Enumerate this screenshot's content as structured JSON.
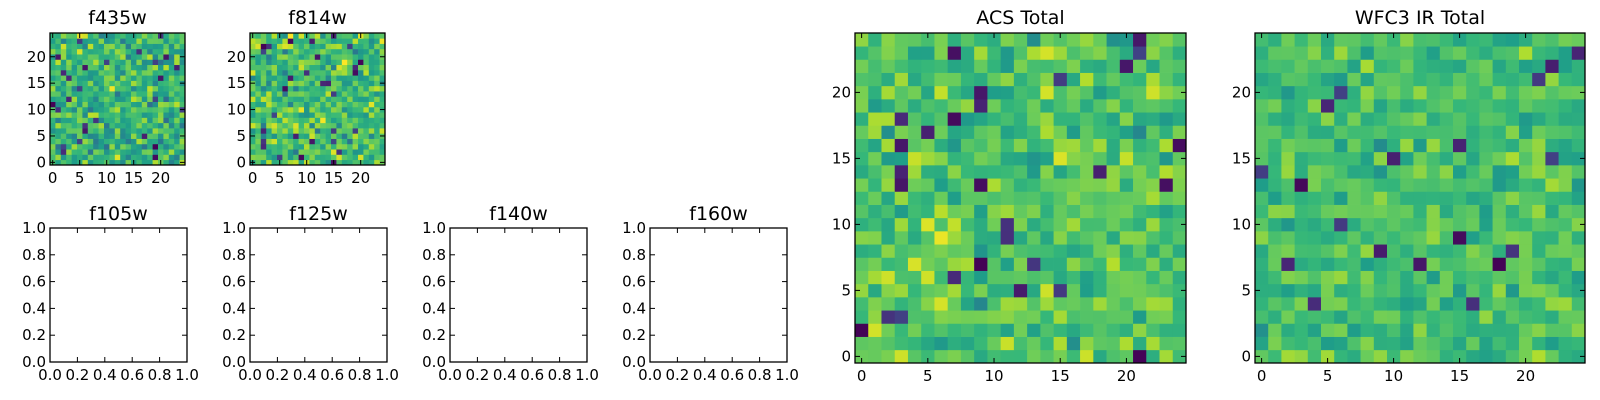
{
  "chart_data": [
    {
      "type": "heatmap",
      "title": "f435w",
      "grid_size": [
        25,
        25
      ],
      "xlim": [
        -0.5,
        24.5
      ],
      "ylim": [
        -0.5,
        24.5
      ],
      "xticks": [
        0,
        5,
        10,
        15,
        20
      ],
      "yticks": [
        0,
        5,
        10,
        15,
        20
      ],
      "xtick_labels": [
        "0",
        "5",
        "10",
        "15",
        "20"
      ],
      "ytick_labels": [
        "0",
        "5",
        "10",
        "15",
        "20"
      ],
      "colormap": "viridis",
      "seed": 11,
      "mean": 0.66,
      "spread": 0.17,
      "outliers": 0.05
    },
    {
      "type": "heatmap",
      "title": "f814w",
      "grid_size": [
        25,
        25
      ],
      "xlim": [
        -0.5,
        24.5
      ],
      "ylim": [
        -0.5,
        24.5
      ],
      "xticks": [
        0,
        5,
        10,
        15,
        20
      ],
      "yticks": [
        0,
        5,
        10,
        15,
        20
      ],
      "xtick_labels": [
        "0",
        "5",
        "10",
        "15",
        "20"
      ],
      "ytick_labels": [
        "0",
        "5",
        "10",
        "15",
        "20"
      ],
      "colormap": "viridis",
      "seed": 23,
      "mean": 0.7,
      "spread": 0.17,
      "outliers": 0.04
    },
    {
      "type": "empty",
      "title": "f105w",
      "xlim": [
        0.0,
        1.0
      ],
      "ylim": [
        0.0,
        1.0
      ],
      "xtick_labels": [
        "0.0",
        "0.2",
        "0.4",
        "0.6",
        "0.8",
        "1.0"
      ],
      "ytick_labels": [
        "0.0",
        "0.2",
        "0.4",
        "0.6",
        "0.8",
        "1.0"
      ]
    },
    {
      "type": "empty",
      "title": "f125w",
      "xlim": [
        0.0,
        1.0
      ],
      "ylim": [
        0.0,
        1.0
      ],
      "xtick_labels": [
        "0.0",
        "0.2",
        "0.4",
        "0.6",
        "0.8",
        "1.0"
      ],
      "ytick_labels": [
        "0.0",
        "0.2",
        "0.4",
        "0.6",
        "0.8",
        "1.0"
      ]
    },
    {
      "type": "empty",
      "title": "f140w",
      "xlim": [
        0.0,
        1.0
      ],
      "ylim": [
        0.0,
        1.0
      ],
      "xtick_labels": [
        "0.0",
        "0.2",
        "0.4",
        "0.6",
        "0.8",
        "1.0"
      ],
      "ytick_labels": [
        "0.0",
        "0.2",
        "0.4",
        "0.6",
        "0.8",
        "1.0"
      ]
    },
    {
      "type": "empty",
      "title": "f160w",
      "xlim": [
        0.0,
        1.0
      ],
      "ylim": [
        0.0,
        1.0
      ],
      "xtick_labels": [
        "0.0",
        "0.2",
        "0.4",
        "0.6",
        "0.8",
        "1.0"
      ],
      "ytick_labels": [
        "0.0",
        "0.2",
        "0.4",
        "0.6",
        "0.8",
        "1.0"
      ]
    },
    {
      "type": "heatmap",
      "title": "ACS Total",
      "grid_size": [
        25,
        25
      ],
      "xlim": [
        -0.5,
        24.5
      ],
      "ylim": [
        -0.5,
        24.5
      ],
      "xticks": [
        0,
        5,
        10,
        15,
        20
      ],
      "yticks": [
        0,
        5,
        10,
        15,
        20
      ],
      "xtick_labels": [
        "0",
        "5",
        "10",
        "15",
        "20"
      ],
      "ytick_labels": [
        "0",
        "5",
        "10",
        "15",
        "20"
      ],
      "colormap": "viridis",
      "seed": 37,
      "mean": 0.72,
      "spread": 0.14,
      "outliers": 0.04
    },
    {
      "type": "heatmap",
      "title": "WFC3 IR Total",
      "grid_size": [
        25,
        25
      ],
      "xlim": [
        -0.5,
        24.5
      ],
      "ylim": [
        -0.5,
        24.5
      ],
      "xticks": [
        0,
        5,
        10,
        15,
        20
      ],
      "yticks": [
        0,
        5,
        10,
        15,
        20
      ],
      "xtick_labels": [
        "0",
        "5",
        "10",
        "15",
        "20"
      ],
      "ytick_labels": [
        "0",
        "5",
        "10",
        "15",
        "20"
      ],
      "colormap": "viridis",
      "seed": 53,
      "mean": 0.7,
      "spread": 0.11,
      "outliers": 0.025
    }
  ]
}
